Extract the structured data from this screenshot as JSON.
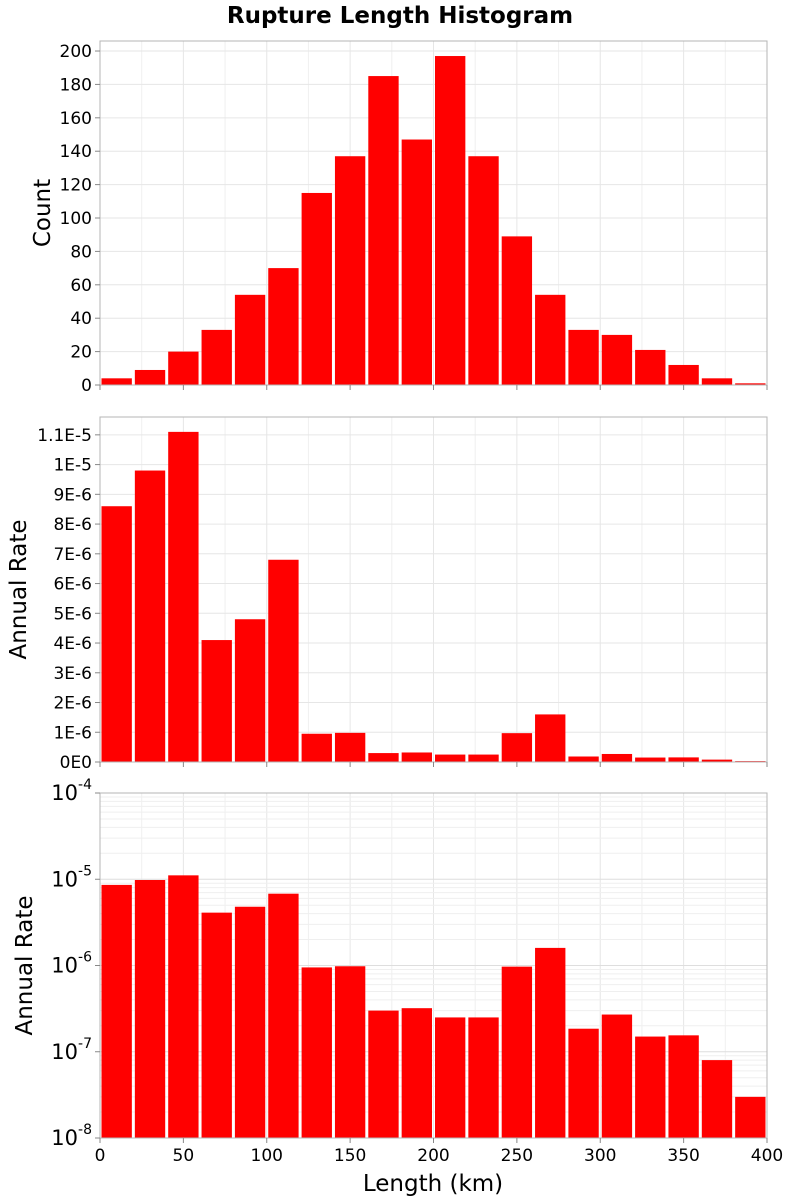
{
  "chart_data": {
    "title": "Rupture Length Histogram",
    "bar_color": "#ff0000",
    "type": "bar",
    "bin_width": 20,
    "x": {
      "label": "Length (km)",
      "range": [
        0,
        400
      ],
      "tick_values": [
        0,
        50,
        100,
        150,
        200,
        250,
        300,
        350,
        400
      ],
      "tick_labels": [
        "0",
        "50",
        "100",
        "150",
        "200",
        "250",
        "300",
        "350",
        "400"
      ]
    },
    "bin_centers": [
      10,
      30,
      50,
      70,
      90,
      110,
      130,
      150,
      170,
      190,
      210,
      230,
      250,
      270,
      290,
      310,
      330,
      350,
      370,
      390
    ],
    "panels": [
      {
        "type": "bar",
        "ylabel": "Count",
        "yscale": "linear",
        "ylim": [
          0,
          206
        ],
        "tick_values": [
          0,
          20,
          40,
          60,
          80,
          100,
          120,
          140,
          160,
          180,
          200
        ],
        "tick_labels": [
          "0",
          "20",
          "40",
          "60",
          "80",
          "100",
          "120",
          "140",
          "160",
          "180",
          "200"
        ],
        "values": [
          4,
          9,
          20,
          33,
          54,
          70,
          115,
          137,
          185,
          147,
          197,
          137,
          89,
          54,
          33,
          30,
          21,
          12,
          4,
          1
        ]
      },
      {
        "type": "bar",
        "ylabel": "Annual Rate",
        "yscale": "linear",
        "ylim": [
          0,
          1.16e-05
        ],
        "tick_values": [
          0,
          1e-06,
          2e-06,
          3e-06,
          4e-06,
          5e-06,
          6e-06,
          7e-06,
          8e-06,
          9e-06,
          1e-05,
          1.1e-05
        ],
        "tick_labels": [
          "0E0",
          "1E-6",
          "2E-6",
          "3E-6",
          "4E-6",
          "5E-6",
          "6E-6",
          "7E-6",
          "8E-6",
          "9E-6",
          "1E-5",
          "1.1E-5"
        ],
        "values": [
          8.6e-06,
          9.8e-06,
          1.11e-05,
          4.1e-06,
          4.8e-06,
          6.8e-06,
          9.5e-07,
          9.8e-07,
          3e-07,
          3.2e-07,
          2.5e-07,
          2.5e-07,
          9.7e-07,
          1.6e-06,
          1.85e-07,
          2.7e-07,
          1.5e-07,
          1.55e-07,
          8e-08,
          3e-08
        ]
      },
      {
        "type": "bar",
        "ylabel": "Annual Rate",
        "yscale": "log",
        "ylim": [
          1e-08,
          0.0001
        ],
        "tick_values": [
          0.0001,
          1e-05,
          1e-06,
          1e-07,
          1e-08
        ],
        "tick_labels": [
          {
            "base": "10",
            "exp": "-4"
          },
          {
            "base": "10",
            "exp": "-5"
          },
          {
            "base": "10",
            "exp": "-6"
          },
          {
            "base": "10",
            "exp": "-7"
          },
          {
            "base": "10",
            "exp": "-8"
          }
        ],
        "values": [
          8.6e-06,
          9.8e-06,
          1.11e-05,
          4.1e-06,
          4.8e-06,
          6.8e-06,
          9.5e-07,
          9.8e-07,
          3e-07,
          3.2e-07,
          2.5e-07,
          2.5e-07,
          9.7e-07,
          1.6e-06,
          1.85e-07,
          2.7e-07,
          1.5e-07,
          1.55e-07,
          8e-08,
          3e-08
        ]
      }
    ],
    "grid": true
  }
}
